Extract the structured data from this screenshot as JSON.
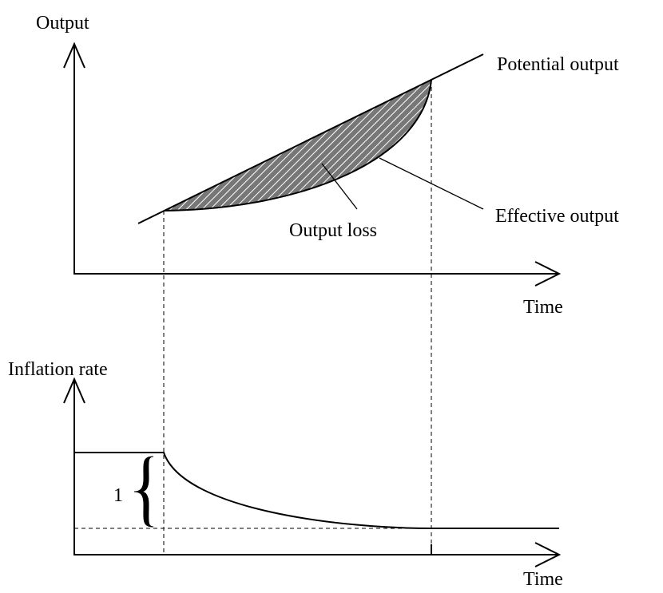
{
  "top_panel": {
    "y_axis_label": "Output",
    "x_axis_label": "Time",
    "potential_label": "Potential output",
    "effective_label": "Effective output",
    "loss_label": "Output loss"
  },
  "bottom_panel": {
    "y_axis_label": "Inflation rate",
    "x_axis_label": "Time",
    "brace_label": "1"
  }
}
